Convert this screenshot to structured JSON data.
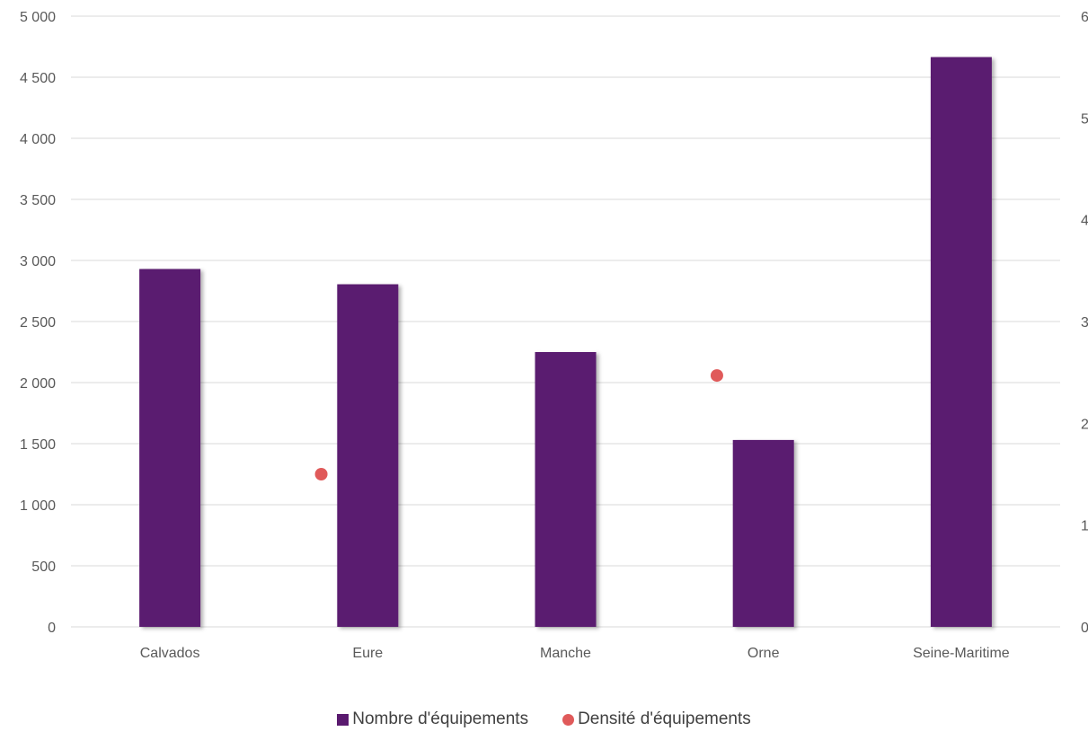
{
  "chart_data": {
    "type": "bar",
    "categories": [
      "Calvados",
      "Eure",
      "Manche",
      "Orne",
      "Seine-Maritime"
    ],
    "series": [
      {
        "name": "Nombre d'équipements",
        "type": "bar",
        "axis": "left",
        "color": "#5a1a6f",
        "values": [
          2930,
          2805,
          2250,
          1530,
          4665
        ]
      },
      {
        "name": "Densité d'équipements",
        "type": "scatter",
        "axis": "right",
        "color": "#e05a5a",
        "values": [
          null,
          1.5,
          null,
          2.47,
          null
        ]
      }
    ],
    "y_left": {
      "range": [
        0,
        5000
      ],
      "ticks": [
        0,
        500,
        1000,
        1500,
        2000,
        2500,
        3000,
        3500,
        4000,
        4500,
        5000
      ],
      "tick_labels": [
        "0",
        "500",
        "1 000",
        "1 500",
        "2 000",
        "2 500",
        "3 000",
        "3 500",
        "4 000",
        "4 500",
        "5 000"
      ]
    },
    "y_right": {
      "range": [
        0,
        6
      ],
      "ticks": [
        0,
        1,
        2,
        3,
        4,
        5,
        6
      ],
      "tick_labels": [
        "0",
        "1",
        "2",
        "3",
        "4",
        "5",
        "6"
      ]
    },
    "grid": true,
    "legend_position": "bottom"
  },
  "legend": {
    "bar_label": "Nombre d'équipements",
    "dot_label": "Densité d'équipements",
    "bar_color": "#5a1a6f",
    "dot_color": "#e05a5a"
  }
}
